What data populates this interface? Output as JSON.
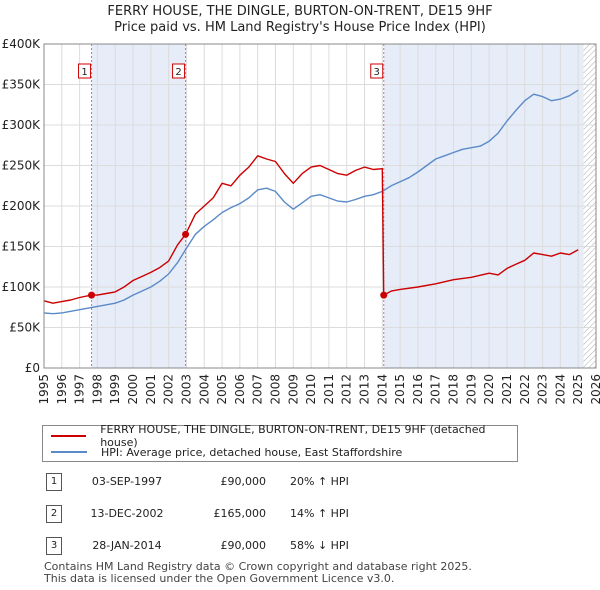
{
  "title_line1": "FERRY HOUSE, THE DINGLE, BURTON-ON-TRENT, DE15 9HF",
  "title_line2": "Price paid vs. HM Land Registry's House Price Index (HPI)",
  "chart_data": {
    "type": "line",
    "title": "FERRY HOUSE, THE DINGLE, BURTON-ON-TRENT, DE15 9HF — Price paid vs. HM Land Registry's House Price Index (HPI)",
    "xlim": [
      1995,
      2026
    ],
    "ylim": [
      0,
      400000
    ],
    "x_ticks": [
      1995,
      1996,
      1997,
      1998,
      1999,
      2000,
      2001,
      2002,
      2003,
      2004,
      2005,
      2006,
      2007,
      2008,
      2009,
      2010,
      2011,
      2012,
      2013,
      2014,
      2015,
      2016,
      2017,
      2018,
      2019,
      2020,
      2021,
      2022,
      2023,
      2024,
      2025,
      2026
    ],
    "y_ticks": [
      {
        "value": 0,
        "label": "£0"
      },
      {
        "value": 50000,
        "label": "£50K"
      },
      {
        "value": 100000,
        "label": "£100K"
      },
      {
        "value": 150000,
        "label": "£150K"
      },
      {
        "value": 200000,
        "label": "£200K"
      },
      {
        "value": 250000,
        "label": "£250K"
      },
      {
        "value": 300000,
        "label": "£300K"
      },
      {
        "value": 350000,
        "label": "£350K"
      },
      {
        "value": 400000,
        "label": "£400K"
      }
    ],
    "grid": true,
    "shaded_periods": [
      [
        1997.67,
        2002.95
      ],
      [
        2014.08,
        2025.3
      ]
    ],
    "hatched_region": [
      2025.3,
      2026
    ],
    "series": [
      {
        "name": "FERRY HOUSE, THE DINGLE, BURTON-ON-TRENT, DE15 9HF (detached house)",
        "color": "#cc0000",
        "x": [
          1995.0,
          1995.5,
          1996.0,
          1996.5,
          1997.0,
          1997.67,
          1998.0,
          1998.5,
          1999.0,
          1999.5,
          2000.0,
          2000.5,
          2001.0,
          2001.5,
          2002.0,
          2002.5,
          2002.95,
          2003.5,
          2004.0,
          2004.5,
          2005.0,
          2005.5,
          2006.0,
          2006.5,
          2007.0,
          2007.5,
          2008.0,
          2008.5,
          2009.0,
          2009.5,
          2010.0,
          2010.5,
          2011.0,
          2011.5,
          2012.0,
          2012.5,
          2013.0,
          2013.5,
          2014.0,
          2014.08,
          2014.5,
          2015.0,
          2016.0,
          2017.0,
          2018.0,
          2019.0,
          2020.0,
          2020.5,
          2021.0,
          2021.5,
          2022.0,
          2022.5,
          2023.0,
          2023.5,
          2024.0,
          2024.5,
          2025.0
        ],
        "y": [
          83000,
          80000,
          82000,
          84000,
          87000,
          90000,
          90000,
          92000,
          94000,
          100000,
          108000,
          113000,
          118000,
          124000,
          132000,
          152000,
          165000,
          190000,
          200000,
          210000,
          228000,
          225000,
          238000,
          248000,
          262000,
          258000,
          255000,
          240000,
          228000,
          240000,
          248000,
          250000,
          245000,
          240000,
          238000,
          244000,
          248000,
          245000,
          246000,
          90000,
          95000,
          97000,
          100000,
          104000,
          109000,
          112000,
          117000,
          115000,
          123000,
          128000,
          133000,
          142000,
          140000,
          138000,
          142000,
          140000,
          146000
        ]
      },
      {
        "name": "HPI: Average price, detached house, East Staffordshire",
        "color": "#5b8ac8",
        "x": [
          1995.0,
          1995.5,
          1996.0,
          1996.5,
          1997.0,
          1997.5,
          1998.0,
          1998.5,
          1999.0,
          1999.5,
          2000.0,
          2000.5,
          2001.0,
          2001.5,
          2002.0,
          2002.5,
          2003.0,
          2003.5,
          2004.0,
          2004.5,
          2005.0,
          2005.5,
          2006.0,
          2006.5,
          2007.0,
          2007.5,
          2008.0,
          2008.5,
          2009.0,
          2009.5,
          2010.0,
          2010.5,
          2011.0,
          2011.5,
          2012.0,
          2012.5,
          2013.0,
          2013.5,
          2014.0,
          2014.5,
          2015.0,
          2015.5,
          2016.0,
          2016.5,
          2017.0,
          2017.5,
          2018.0,
          2018.5,
          2019.0,
          2019.5,
          2020.0,
          2020.5,
          2021.0,
          2021.5,
          2022.0,
          2022.5,
          2023.0,
          2023.5,
          2024.0,
          2024.5,
          2025.0
        ],
        "y": [
          68000,
          67000,
          68000,
          70000,
          72000,
          74000,
          76000,
          78000,
          80000,
          84000,
          90000,
          95000,
          100000,
          107000,
          116000,
          130000,
          148000,
          165000,
          175000,
          183000,
          192000,
          198000,
          203000,
          210000,
          220000,
          222000,
          218000,
          205000,
          196000,
          204000,
          212000,
          214000,
          210000,
          206000,
          205000,
          208000,
          212000,
          214000,
          218000,
          225000,
          230000,
          235000,
          242000,
          250000,
          258000,
          262000,
          266000,
          270000,
          272000,
          274000,
          280000,
          290000,
          305000,
          318000,
          330000,
          338000,
          335000,
          330000,
          332000,
          336000,
          343000
        ]
      }
    ],
    "markers": [
      {
        "label": "1",
        "x": 1997.67,
        "y": 90000
      },
      {
        "label": "2",
        "x": 2002.95,
        "y": 165000
      },
      {
        "label": "3",
        "x": 2014.08,
        "y": 90000
      }
    ]
  },
  "legend": [
    {
      "label": "FERRY HOUSE, THE DINGLE, BURTON-ON-TRENT, DE15 9HF (detached house)",
      "color": "#cc0000"
    },
    {
      "label": "HPI: Average price, detached house, East Staffordshire",
      "color": "#5b8ac8"
    }
  ],
  "sales": [
    {
      "num": "1",
      "date": "03-SEP-1997",
      "price": "£90,000",
      "hpi": "20% ↑ HPI"
    },
    {
      "num": "2",
      "date": "13-DEC-2002",
      "price": "£165,000",
      "hpi": "14% ↑ HPI"
    },
    {
      "num": "3",
      "date": "28-JAN-2014",
      "price": "£90,000",
      "hpi": "58% ↓ HPI"
    }
  ],
  "footer_line1": "Contains HM Land Registry data © Crown copyright and database right 2025.",
  "footer_line2": "This data is licensed under the Open Government Licence v3.0."
}
